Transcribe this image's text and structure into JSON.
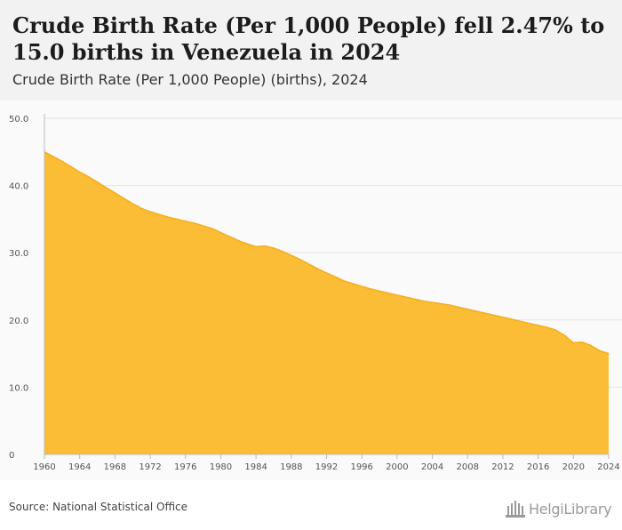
{
  "header": {
    "title": "Crude Birth Rate (Per 1,000 People) fell 2.47% to 15.0 births in Venezuela in 2024",
    "subtitle": "Crude Birth Rate (Per 1,000 People) (births), 2024"
  },
  "footer": {
    "source": "Source: National Statistical Office",
    "logo_text": "HelgiLibrary"
  },
  "colors": {
    "area_fill": "#fbbd36",
    "area_stroke": "#f5ad1c",
    "grid": "#e3e3e3",
    "tick_text": "#555555"
  },
  "chart_data": {
    "type": "area",
    "title": "",
    "xlabel": "",
    "ylabel": "",
    "xlim": [
      1960,
      2024
    ],
    "ylim": [
      0,
      50
    ],
    "y_ticks": [
      0,
      10,
      20,
      30,
      40,
      50
    ],
    "y_tick_labels": [
      "0",
      "10.0",
      "20.0",
      "30.0",
      "40.0",
      "50.0"
    ],
    "x_ticks": [
      1960,
      1964,
      1968,
      1972,
      1976,
      1980,
      1984,
      1988,
      1992,
      1996,
      2000,
      2004,
      2008,
      2012,
      2016,
      2020,
      2024
    ],
    "grid": true,
    "legend": "none",
    "x": [
      1960,
      1961,
      1962,
      1963,
      1964,
      1965,
      1966,
      1967,
      1968,
      1969,
      1970,
      1971,
      1972,
      1973,
      1974,
      1975,
      1976,
      1977,
      1978,
      1979,
      1980,
      1981,
      1982,
      1983,
      1984,
      1985,
      1986,
      1987,
      1988,
      1989,
      1990,
      1991,
      1992,
      1993,
      1994,
      1995,
      1996,
      1997,
      1998,
      1999,
      2000,
      2001,
      2002,
      2003,
      2004,
      2005,
      2006,
      2007,
      2008,
      2009,
      2010,
      2011,
      2012,
      2013,
      2014,
      2015,
      2016,
      2017,
      2018,
      2019,
      2020,
      2021,
      2022,
      2023,
      2024
    ],
    "values": [
      45.0,
      44.3,
      43.6,
      42.8,
      42.0,
      41.3,
      40.5,
      39.7,
      38.9,
      38.1,
      37.3,
      36.6,
      36.1,
      35.7,
      35.3,
      35.0,
      34.7,
      34.4,
      34.0,
      33.6,
      33.0,
      32.4,
      31.8,
      31.3,
      30.9,
      31.0,
      30.7,
      30.2,
      29.6,
      29.0,
      28.3,
      27.6,
      27.0,
      26.4,
      25.8,
      25.4,
      25.0,
      24.6,
      24.3,
      24.0,
      23.7,
      23.4,
      23.1,
      22.8,
      22.6,
      22.4,
      22.2,
      21.9,
      21.6,
      21.3,
      21.0,
      20.7,
      20.4,
      20.1,
      19.8,
      19.5,
      19.2,
      18.9,
      18.5,
      17.7,
      16.6,
      16.7,
      16.2,
      15.4,
      15.0
    ]
  }
}
